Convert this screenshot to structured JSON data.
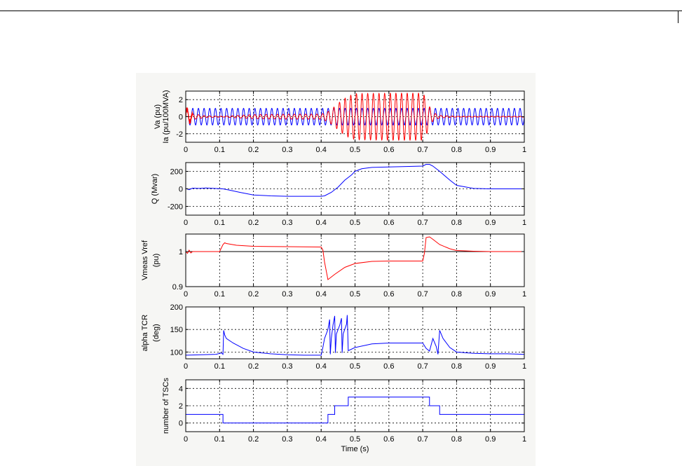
{
  "chart_data": [
    {
      "type": "line",
      "ylabel_lines": [
        "Va (pu)",
        "Ia (pu/100MVA)"
      ],
      "xlim": [
        0,
        1
      ],
      "ylim": [
        -3,
        3
      ],
      "x_ticks": [
        "0",
        "0.1",
        "0.2",
        "0.3",
        "0.4",
        "0.5",
        "0.6",
        "0.7",
        "0.8",
        "0.9",
        "1"
      ],
      "y_ticks": [
        "-2",
        "0",
        "2"
      ],
      "y_tick_values": [
        -2,
        0,
        2
      ],
      "grid": true,
      "series": [
        {
          "color": "#0000ff",
          "kind": "sine",
          "freq_hz": 60,
          "amplitude": 0.98
        },
        {
          "color": "#ff0000",
          "kind": "sine",
          "freq_hz": 60,
          "envelope_x": [
            0,
            0.01,
            0.02,
            0.06,
            0.11,
            0.2,
            0.3,
            0.4,
            0.42,
            0.44,
            0.46,
            0.48,
            0.5,
            0.6,
            0.7,
            0.71,
            0.72,
            0.73,
            0.75,
            0.8,
            1.0
          ],
          "envelope_y": [
            1.0,
            0.7,
            0.35,
            0.1,
            0.05,
            0.25,
            0.3,
            0.3,
            0.6,
            1.2,
            1.9,
            2.4,
            2.7,
            2.75,
            2.75,
            2.2,
            1.2,
            0.5,
            0.15,
            0.05,
            0.05
          ]
        }
      ]
    },
    {
      "type": "line",
      "ylabel_lines": [
        "Q (Mvar)"
      ],
      "xlim": [
        0,
        1
      ],
      "ylim": [
        -300,
        300
      ],
      "x_ticks": [
        "0",
        "0.1",
        "0.2",
        "0.3",
        "0.4",
        "0.5",
        "0.6",
        "0.7",
        "0.8",
        "0.9",
        "1"
      ],
      "y_ticks": [
        "-200",
        "0",
        "200"
      ],
      "y_tick_values": [
        -200,
        0,
        200
      ],
      "grid": true,
      "series": [
        {
          "color": "#0000ff",
          "x": [
            0,
            0.01,
            0.02,
            0.04,
            0.06,
            0.1,
            0.11,
            0.13,
            0.16,
            0.2,
            0.25,
            0.3,
            0.35,
            0.4,
            0.41,
            0.43,
            0.45,
            0.47,
            0.49,
            0.5,
            0.52,
            0.55,
            0.6,
            0.7,
            0.71,
            0.72,
            0.73,
            0.75,
            0.78,
            0.8,
            0.85,
            0.9,
            0.95,
            1.0
          ],
          "y": [
            5,
            -10,
            8,
            5,
            10,
            2,
            0,
            -15,
            -40,
            -70,
            -80,
            -85,
            -85,
            -85,
            -80,
            -40,
            20,
            100,
            160,
            200,
            230,
            245,
            250,
            260,
            280,
            280,
            260,
            200,
            100,
            40,
            5,
            0,
            0,
            0
          ]
        }
      ]
    },
    {
      "type": "line",
      "ylabel_lines": [
        "Vmeas Vref",
        "(pu)"
      ],
      "xlim": [
        0,
        1
      ],
      "ylim": [
        0.9,
        1.05
      ],
      "x_ticks": [
        "0",
        "0.1",
        "0.2",
        "0.3",
        "0.4",
        "0.5",
        "0.6",
        "0.7",
        "0.8",
        "0.9",
        "1"
      ],
      "y_ticks": [
        "0.9",
        "1"
      ],
      "y_tick_values": [
        0.9,
        1.0
      ],
      "grid": true,
      "series": [
        {
          "color": "#000000",
          "x": [
            0,
            1
          ],
          "y": [
            1.0,
            1.0
          ]
        },
        {
          "color": "#ff0000",
          "x": [
            0,
            0.005,
            0.01,
            0.015,
            0.02,
            0.03,
            0.1,
            0.11,
            0.115,
            0.12,
            0.15,
            0.2,
            0.3,
            0.4,
            0.405,
            0.41,
            0.42,
            0.44,
            0.47,
            0.5,
            0.55,
            0.6,
            0.7,
            0.705,
            0.71,
            0.72,
            0.73,
            0.75,
            0.78,
            0.8,
            0.85,
            0.9,
            1.0
          ],
          "y": [
            1.0,
            0.995,
            1.004,
            0.996,
            1.0,
            1.0,
            1.0,
            1.02,
            1.025,
            1.023,
            1.018,
            1.015,
            1.014,
            1.013,
            1.005,
            0.97,
            0.92,
            0.935,
            0.955,
            0.966,
            0.972,
            0.973,
            0.973,
            0.995,
            1.04,
            1.042,
            1.035,
            1.02,
            1.008,
            1.003,
            1.001,
            1.0,
            1.0
          ]
        }
      ]
    },
    {
      "type": "line",
      "ylabel_lines": [
        "alpha TCR",
        "(deg)"
      ],
      "xlim": [
        0,
        1
      ],
      "ylim": [
        85,
        200
      ],
      "x_ticks": [
        "0",
        "0.1",
        "0.2",
        "0.3",
        "0.4",
        "0.5",
        "0.6",
        "0.7",
        "0.8",
        "0.9",
        "1"
      ],
      "y_ticks": [
        "100",
        "150",
        "200"
      ],
      "y_tick_values": [
        100,
        150,
        200
      ],
      "grid": true,
      "series": [
        {
          "color": "#0000ff",
          "x": [
            0,
            0.09,
            0.105,
            0.11,
            0.112,
            0.115,
            0.12,
            0.14,
            0.17,
            0.2,
            0.25,
            0.3,
            0.35,
            0.4,
            0.405,
            0.41,
            0.42,
            0.425,
            0.427,
            0.43,
            0.435,
            0.44,
            0.442,
            0.445,
            0.455,
            0.46,
            0.462,
            0.465,
            0.475,
            0.477,
            0.48,
            0.5,
            0.55,
            0.6,
            0.7,
            0.71,
            0.72,
            0.73,
            0.74,
            0.745,
            0.75,
            0.76,
            0.78,
            0.8,
            0.85,
            0.9,
            0.95,
            1.0
          ],
          "y": [
            93,
            95,
            98,
            95,
            148,
            138,
            130,
            120,
            108,
            100,
            96,
            94,
            93,
            93,
            110,
            130,
            150,
            172,
            95,
            130,
            160,
            180,
            98,
            140,
            160,
            175,
            98,
            140,
            162,
            182,
            103,
            110,
            118,
            120,
            120,
            108,
            102,
            130,
            112,
            95,
            148,
            130,
            110,
            100,
            97,
            96,
            96,
            95
          ]
        }
      ]
    },
    {
      "type": "line",
      "ylabel_lines": [
        "number of TSCs"
      ],
      "xlabel": "Time (s)",
      "xlim": [
        0,
        1
      ],
      "ylim": [
        -1,
        5
      ],
      "x_ticks": [
        "0",
        "0.1",
        "0.2",
        "0.3",
        "0.4",
        "0.5",
        "0.6",
        "0.7",
        "0.8",
        "0.9",
        "1"
      ],
      "y_ticks": [
        "0",
        "2",
        "4"
      ],
      "y_tick_values": [
        0,
        2,
        4
      ],
      "grid": true,
      "series": [
        {
          "color": "#0000ff",
          "step": true,
          "x": [
            0,
            0.11,
            0.11,
            0.42,
            0.42,
            0.44,
            0.44,
            0.48,
            0.48,
            0.72,
            0.72,
            0.75,
            0.75,
            1.0
          ],
          "y": [
            1,
            1,
            0,
            0,
            1,
            1,
            2,
            2,
            3,
            3,
            2,
            2,
            1,
            1
          ]
        }
      ]
    }
  ]
}
